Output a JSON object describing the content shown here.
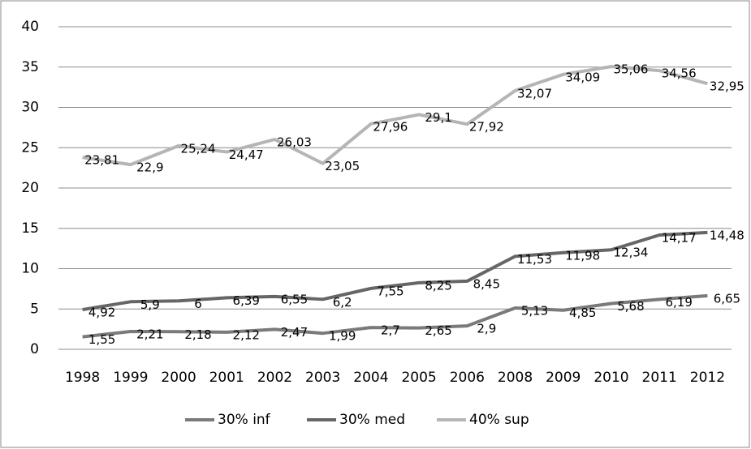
{
  "chart_data": {
    "type": "line",
    "categories": [
      "1998",
      "1999",
      "2000",
      "2001",
      "2002",
      "2003",
      "2004",
      "2005",
      "2006",
      "2008",
      "2009",
      "2010",
      "2011",
      "2012"
    ],
    "series": [
      {
        "name": "30% inf",
        "color": "#7a7a7a",
        "values": [
          1.55,
          2.21,
          2.18,
          2.12,
          2.47,
          1.99,
          2.7,
          2.65,
          2.9,
          5.13,
          4.85,
          5.68,
          6.19,
          6.65
        ],
        "value_labels": [
          "1,55",
          "2,21",
          "2,18",
          "2,12",
          "2,47",
          "1,99",
          "2,7",
          "2,65",
          "2,9",
          "5,13",
          "4,85",
          "5,68",
          "6,19",
          "6,65"
        ]
      },
      {
        "name": "30% med",
        "color": "#666666",
        "values": [
          4.92,
          5.9,
          6,
          6.39,
          6.55,
          6.2,
          7.55,
          8.25,
          8.45,
          11.53,
          11.98,
          12.34,
          14.17,
          14.48
        ],
        "value_labels": [
          "4,92",
          "5,9",
          "6",
          "6,39",
          "6,55",
          "6,2",
          "7,55",
          "8,25",
          "8,45",
          "11,53",
          "11,98",
          "12,34",
          "14,17",
          "14,48"
        ]
      },
      {
        "name": "40% sup",
        "color": "#b5b5b5",
        "values": [
          23.81,
          22.9,
          25.24,
          24.47,
          26.03,
          23.05,
          27.96,
          29.1,
          27.92,
          32.07,
          34.09,
          35.06,
          34.56,
          32.95
        ],
        "value_labels": [
          "23,81",
          "22,9",
          "25,24",
          "24,47",
          "26,03",
          "23,05",
          "27,96",
          "29,1",
          "27,92",
          "32,07",
          "34,09",
          "35,06",
          "34,56",
          "32,95"
        ]
      }
    ],
    "ylim": [
      0,
      40
    ],
    "yticks": [
      0,
      5,
      10,
      15,
      20,
      25,
      30,
      35,
      40
    ],
    "grid": true,
    "legend": "bottom"
  }
}
